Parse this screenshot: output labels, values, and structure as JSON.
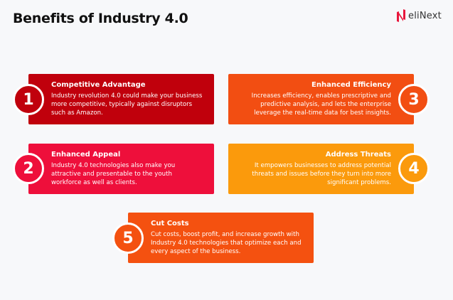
{
  "title": "Benefits of Industry 4.0",
  "logo": {
    "text": "eliNext",
    "color": "#e8173c"
  },
  "cards": [
    {
      "number": "1",
      "title": "Competitive Advantage",
      "body": "Industry revolution 4.0 could make your business more competitive, typically against disruptors such as Amazon.",
      "color": "#c0000c"
    },
    {
      "number": "2",
      "title": "Enhanced Appeal",
      "body": "Industry 4.0 technologies also make you attractive and presentable to the youth workforce as well as clients.",
      "color": "#ee0f3b"
    },
    {
      "number": "3",
      "title": "Enhanced Efficiency",
      "body": "Increases efficiency, enables prescriptive and predictive analysis, and lets the enterprise leverage the real-time data for best insights.",
      "color": "#f24e12"
    },
    {
      "number": "4",
      "title": "Address Threats",
      "body": "It empowers businesses to address potential threats and issues before they turn into more significant problems.",
      "color": "#fb9a0c"
    },
    {
      "number": "5",
      "title": "Cut Costs",
      "body": "Cut costs, boost profit, and increase growth with Industry 4.0 technologies that optimize each and every aspect of the business.",
      "color": "#f45110"
    }
  ]
}
